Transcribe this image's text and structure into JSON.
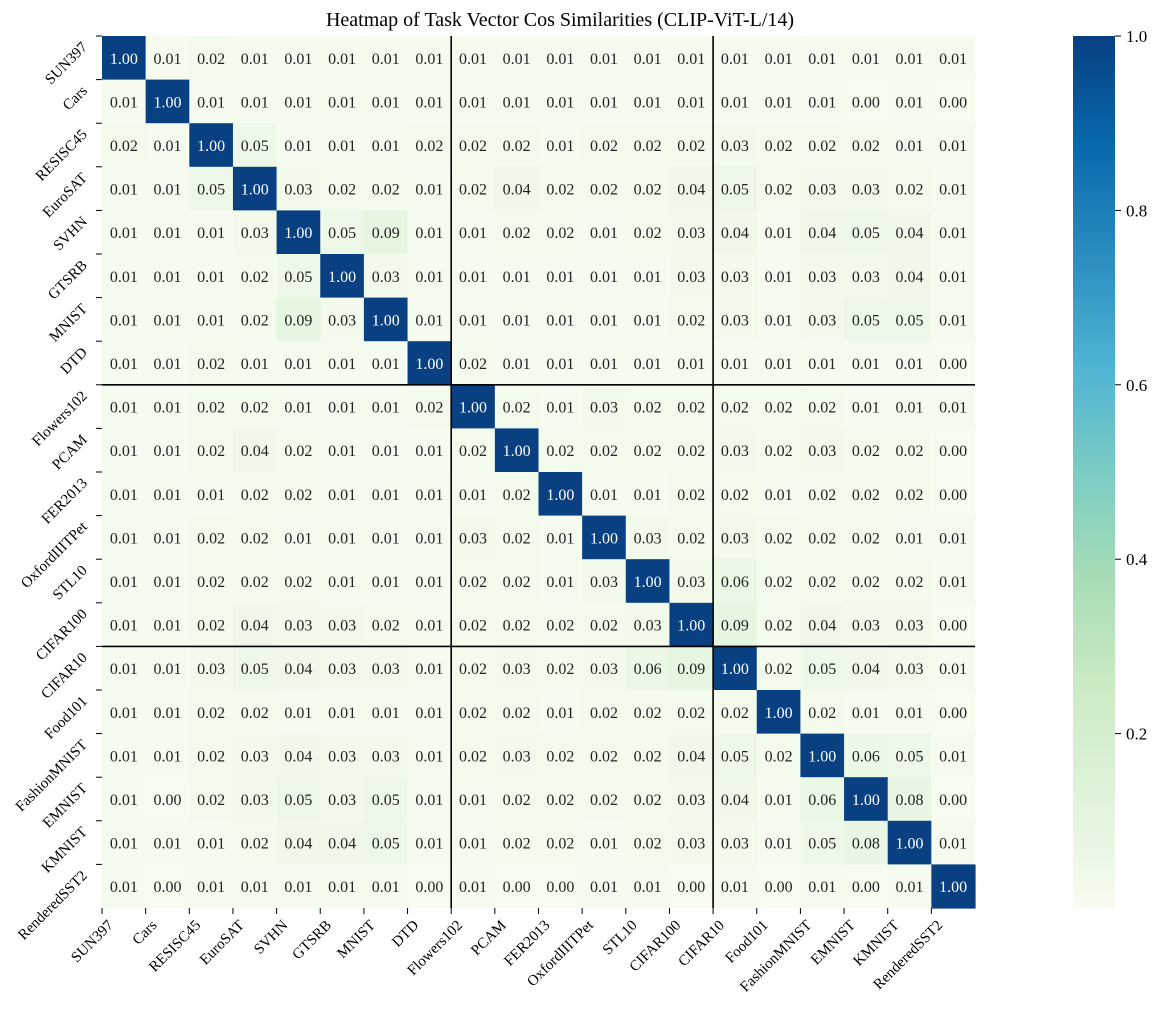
{
  "chart_data": {
    "type": "heatmap",
    "title": "Heatmap of Task Vector Cos Similarities (CLIP-ViT-L/14)",
    "xlabel": "",
    "ylabel": "",
    "categories": [
      "SUN397",
      "Cars",
      "RESISC45",
      "EuroSAT",
      "SVHN",
      "GTSRB",
      "MNIST",
      "DTD",
      "Flowers102",
      "PCAM",
      "FER2013",
      "OxfordIIITPet",
      "STL10",
      "CIFAR100",
      "CIFAR10",
      "Food101",
      "FashionMNIST",
      "EMNIST",
      "KMNIST",
      "RenderedSST2"
    ],
    "group_boundaries_after_index": [
      7,
      13
    ],
    "values": [
      [
        1.0,
        0.01,
        0.02,
        0.01,
        0.01,
        0.01,
        0.01,
        0.01,
        0.01,
        0.01,
        0.01,
        0.01,
        0.01,
        0.01,
        0.01,
        0.01,
        0.01,
        0.01,
        0.01,
        0.01
      ],
      [
        0.01,
        1.0,
        0.01,
        0.01,
        0.01,
        0.01,
        0.01,
        0.01,
        0.01,
        0.01,
        0.01,
        0.01,
        0.01,
        0.01,
        0.01,
        0.01,
        0.01,
        0.0,
        0.01,
        0.0
      ],
      [
        0.02,
        0.01,
        1.0,
        0.05,
        0.01,
        0.01,
        0.01,
        0.02,
        0.02,
        0.02,
        0.01,
        0.02,
        0.02,
        0.02,
        0.03,
        0.02,
        0.02,
        0.02,
        0.01,
        0.01
      ],
      [
        0.01,
        0.01,
        0.05,
        1.0,
        0.03,
        0.02,
        0.02,
        0.01,
        0.02,
        0.04,
        0.02,
        0.02,
        0.02,
        0.04,
        0.05,
        0.02,
        0.03,
        0.03,
        0.02,
        0.01
      ],
      [
        0.01,
        0.01,
        0.01,
        0.03,
        1.0,
        0.05,
        0.09,
        0.01,
        0.01,
        0.02,
        0.02,
        0.01,
        0.02,
        0.03,
        0.04,
        0.01,
        0.04,
        0.05,
        0.04,
        0.01
      ],
      [
        0.01,
        0.01,
        0.01,
        0.02,
        0.05,
        1.0,
        0.03,
        0.01,
        0.01,
        0.01,
        0.01,
        0.01,
        0.01,
        0.03,
        0.03,
        0.01,
        0.03,
        0.03,
        0.04,
        0.01
      ],
      [
        0.01,
        0.01,
        0.01,
        0.02,
        0.09,
        0.03,
        1.0,
        0.01,
        0.01,
        0.01,
        0.01,
        0.01,
        0.01,
        0.02,
        0.03,
        0.01,
        0.03,
        0.05,
        0.05,
        0.01
      ],
      [
        0.01,
        0.01,
        0.02,
        0.01,
        0.01,
        0.01,
        0.01,
        1.0,
        0.02,
        0.01,
        0.01,
        0.01,
        0.01,
        0.01,
        0.01,
        0.01,
        0.01,
        0.01,
        0.01,
        0.0
      ],
      [
        0.01,
        0.01,
        0.02,
        0.02,
        0.01,
        0.01,
        0.01,
        0.02,
        1.0,
        0.02,
        0.01,
        0.03,
        0.02,
        0.02,
        0.02,
        0.02,
        0.02,
        0.01,
        0.01,
        0.01
      ],
      [
        0.01,
        0.01,
        0.02,
        0.04,
        0.02,
        0.01,
        0.01,
        0.01,
        0.02,
        1.0,
        0.02,
        0.02,
        0.02,
        0.02,
        0.03,
        0.02,
        0.03,
        0.02,
        0.02,
        0.0
      ],
      [
        0.01,
        0.01,
        0.01,
        0.02,
        0.02,
        0.01,
        0.01,
        0.01,
        0.01,
        0.02,
        1.0,
        0.01,
        0.01,
        0.02,
        0.02,
        0.01,
        0.02,
        0.02,
        0.02,
        0.0
      ],
      [
        0.01,
        0.01,
        0.02,
        0.02,
        0.01,
        0.01,
        0.01,
        0.01,
        0.03,
        0.02,
        0.01,
        1.0,
        0.03,
        0.02,
        0.03,
        0.02,
        0.02,
        0.02,
        0.01,
        0.01
      ],
      [
        0.01,
        0.01,
        0.02,
        0.02,
        0.02,
        0.01,
        0.01,
        0.01,
        0.02,
        0.02,
        0.01,
        0.03,
        1.0,
        0.03,
        0.06,
        0.02,
        0.02,
        0.02,
        0.02,
        0.01
      ],
      [
        0.01,
        0.01,
        0.02,
        0.04,
        0.03,
        0.03,
        0.02,
        0.01,
        0.02,
        0.02,
        0.02,
        0.02,
        0.03,
        1.0,
        0.09,
        0.02,
        0.04,
        0.03,
        0.03,
        0.0
      ],
      [
        0.01,
        0.01,
        0.03,
        0.05,
        0.04,
        0.03,
        0.03,
        0.01,
        0.02,
        0.03,
        0.02,
        0.03,
        0.06,
        0.09,
        1.0,
        0.02,
        0.05,
        0.04,
        0.03,
        0.01
      ],
      [
        0.01,
        0.01,
        0.02,
        0.02,
        0.01,
        0.01,
        0.01,
        0.01,
        0.02,
        0.02,
        0.01,
        0.02,
        0.02,
        0.02,
        0.02,
        1.0,
        0.02,
        0.01,
        0.01,
        0.0
      ],
      [
        0.01,
        0.01,
        0.02,
        0.03,
        0.04,
        0.03,
        0.03,
        0.01,
        0.02,
        0.03,
        0.02,
        0.02,
        0.02,
        0.04,
        0.05,
        0.02,
        1.0,
        0.06,
        0.05,
        0.01
      ],
      [
        0.01,
        0.0,
        0.02,
        0.03,
        0.05,
        0.03,
        0.05,
        0.01,
        0.01,
        0.02,
        0.02,
        0.02,
        0.02,
        0.03,
        0.04,
        0.01,
        0.06,
        1.0,
        0.08,
        0.0
      ],
      [
        0.01,
        0.01,
        0.01,
        0.02,
        0.04,
        0.04,
        0.05,
        0.01,
        0.01,
        0.02,
        0.02,
        0.01,
        0.02,
        0.03,
        0.03,
        0.01,
        0.05,
        0.08,
        1.0,
        0.01
      ],
      [
        0.01,
        0.0,
        0.01,
        0.01,
        0.01,
        0.01,
        0.01,
        0.0,
        0.01,
        0.0,
        0.0,
        0.01,
        0.01,
        0.0,
        0.01,
        0.0,
        0.01,
        0.0,
        0.01,
        1.0
      ]
    ],
    "colorbar": {
      "ticks": [
        0.2,
        0.4,
        0.6,
        0.8,
        1.0
      ],
      "range": [
        0.0,
        1.0
      ]
    },
    "colormap_stops": [
      {
        "v": 0.0,
        "color": "#f7fcf0"
      },
      {
        "v": 0.125,
        "color": "#e0f3db"
      },
      {
        "v": 0.25,
        "color": "#ccebc5"
      },
      {
        "v": 0.375,
        "color": "#a8ddb5"
      },
      {
        "v": 0.5,
        "color": "#7bccc4"
      },
      {
        "v": 0.625,
        "color": "#4eb3d3"
      },
      {
        "v": 0.75,
        "color": "#2b8cbe"
      },
      {
        "v": 0.875,
        "color": "#0868ac"
      },
      {
        "v": 1.0,
        "color": "#084081"
      }
    ],
    "grid": false,
    "legend": "colorbar-right"
  }
}
